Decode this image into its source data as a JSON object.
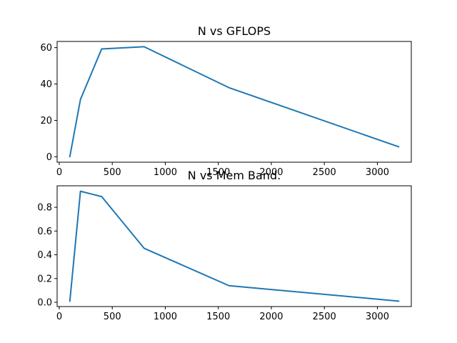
{
  "chart_data": [
    {
      "type": "line",
      "title": "N vs GFLOPS",
      "xlabel": "",
      "ylabel": "",
      "x": [
        100,
        200,
        400,
        800,
        1600,
        3200
      ],
      "series": [
        {
          "values": [
            0.1,
            31.5,
            59.3,
            60.5,
            38.0,
            5.5
          ]
        }
      ],
      "xlim": [
        -20,
        3320
      ],
      "ylim": [
        -3.0,
        63.4
      ],
      "xticks": [
        "0",
        "500",
        "1000",
        "1500",
        "2000",
        "2500",
        "3000"
      ],
      "yticks": [
        "0",
        "20",
        "40",
        "60"
      ],
      "grid": false,
      "line_color": "#1f77b4"
    },
    {
      "type": "line",
      "title": "N vs Mem Band.",
      "xlabel": "",
      "ylabel": "",
      "x": [
        100,
        200,
        400,
        800,
        1600,
        3200
      ],
      "series": [
        {
          "values": [
            0.01,
            0.935,
            0.89,
            0.455,
            0.14,
            0.01
          ]
        }
      ],
      "xlim": [
        -20,
        3320
      ],
      "ylim": [
        -0.036,
        0.981
      ],
      "xticks": [
        "0",
        "500",
        "1000",
        "1500",
        "2000",
        "2500",
        "3000"
      ],
      "yticks": [
        "0.0",
        "0.2",
        "0.4",
        "0.6",
        "0.8"
      ],
      "grid": false,
      "line_color": "#1f77b4"
    }
  ]
}
